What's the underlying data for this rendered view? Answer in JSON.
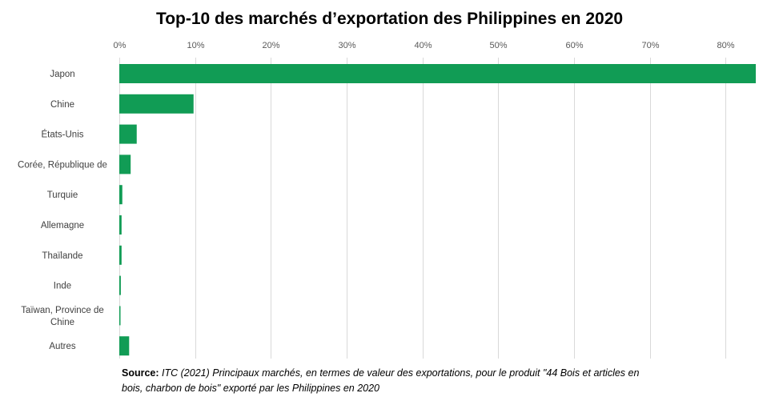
{
  "chart_data": {
    "type": "bar",
    "orientation": "horizontal",
    "title": "Top-10 des marchés d’exportation des Philippines en 2020",
    "categories": [
      "Japon",
      "Chine",
      "États-Unis",
      "Corée, République de",
      "Turquie",
      "Allemagne",
      "Thaïlande",
      "Inde",
      "Taïwan, Province de Chine",
      "Autres"
    ],
    "category_lines": [
      [
        "Japon"
      ],
      [
        "Chine"
      ],
      [
        "États-Unis"
      ],
      [
        "Corée, République de"
      ],
      [
        "Turquie"
      ],
      [
        "Allemagne"
      ],
      [
        "Thaïlande"
      ],
      [
        "Inde"
      ],
      [
        "Taïwan, Province de",
        "Chine"
      ],
      [
        "Autres"
      ]
    ],
    "values": [
      84,
      9.8,
      2.3,
      1.5,
      0.4,
      0.3,
      0.3,
      0.2,
      0.15,
      1.3
    ],
    "xlim": [
      0,
      84
    ],
    "ticks": [
      0,
      10,
      20,
      30,
      40,
      50,
      60,
      70,
      80
    ],
    "tick_labels": [
      "0%",
      "10%",
      "20%",
      "30%",
      "40%",
      "50%",
      "60%",
      "70%",
      "80%"
    ],
    "axis_position": "top",
    "grid": true,
    "bar_color": "#119C55",
    "grid_color": "#D9D9D9",
    "xlabel": "",
    "ylabel": ""
  },
  "source": {
    "label": "Source:",
    "text": " ITC (2021) Principaux marchés, en termes de valeur des exportations, pour le produit \"44 Bois et articles en bois, charbon de bois\" exporté par les Philippines en 2020"
  }
}
